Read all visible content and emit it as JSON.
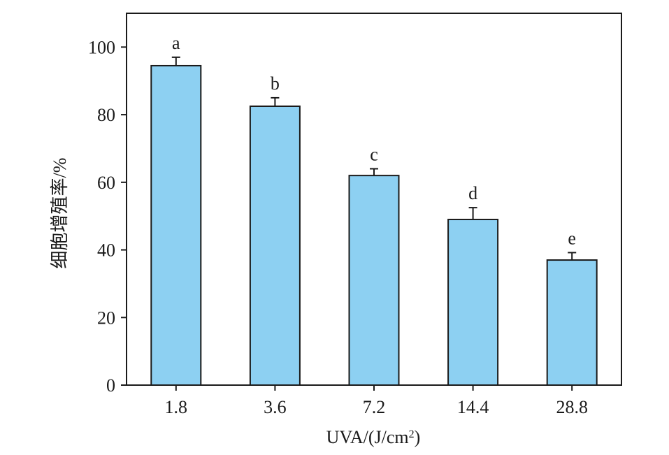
{
  "chart_data": {
    "type": "bar",
    "title": "",
    "xlabel": "UVA/(J/cm",
    "xlabel_sup": "2",
    "xlabel_tail": ")",
    "ylabel": "细胞增殖率/%",
    "ylim": [
      0,
      110
    ],
    "yticks": [
      0,
      20,
      40,
      60,
      80,
      100
    ],
    "grid": false,
    "legend": "none",
    "categories": [
      "1.8",
      "3.6",
      "7.2",
      "14.4",
      "28.8"
    ],
    "values": [
      94.5,
      82.5,
      62,
      49,
      37
    ],
    "errors": [
      2.5,
      2.5,
      2,
      3.5,
      2.2
    ],
    "significance": [
      "a",
      "b",
      "c",
      "d",
      "e"
    ],
    "bar_color": "#8dd0f2",
    "edge_color": "#1a1a1a"
  }
}
